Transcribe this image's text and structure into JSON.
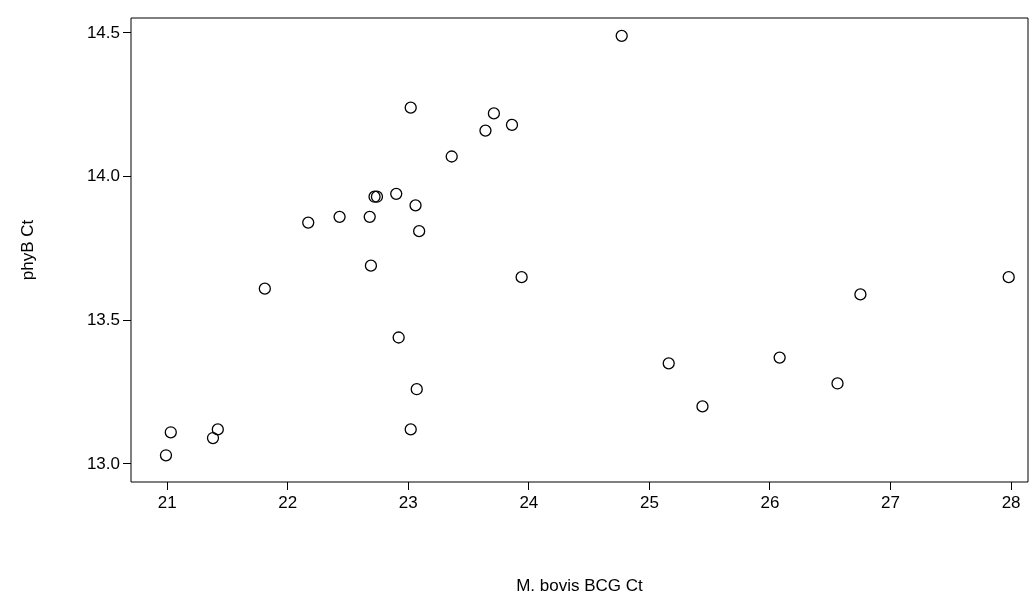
{
  "chart_data": {
    "type": "scatter",
    "xlabel": "M. bovis BCG Ct",
    "ylabel": "phyB Ct",
    "x": [
      20.99,
      21.03,
      21.38,
      21.42,
      21.81,
      22.17,
      22.43,
      22.68,
      22.69,
      22.72,
      22.74,
      22.9,
      22.92,
      23.02,
      23.06,
      23.09,
      23.07,
      23.02,
      23.36,
      23.64,
      23.71,
      23.86,
      23.94,
      24.77,
      25.16,
      25.44,
      26.08,
      26.56,
      26.75,
      27.98
    ],
    "values": [
      13.03,
      13.11,
      13.09,
      13.12,
      13.61,
      13.84,
      13.86,
      13.86,
      13.69,
      13.93,
      13.93,
      13.94,
      13.44,
      14.24,
      13.9,
      13.81,
      13.26,
      13.12,
      14.07,
      14.16,
      14.22,
      14.18,
      13.65,
      14.49,
      13.35,
      13.2,
      13.37,
      13.28,
      13.59,
      13.65
    ],
    "color": "#000000",
    "marker": "circle",
    "grid": false,
    "legend": false,
    "xlim": [
      20.7,
      28.14
    ],
    "xticks": [
      21,
      22,
      23,
      24,
      25,
      26,
      27,
      28
    ],
    "ylim": [
      12.937,
      14.552
    ],
    "yticks": [
      {
        "value": 13,
        "label": "13.0"
      },
      {
        "value": 13.5,
        "label": "13.5"
      },
      {
        "value": 14,
        "label": "14.0"
      },
      {
        "value": 14.5,
        "label": "14.5"
      }
    ]
  }
}
